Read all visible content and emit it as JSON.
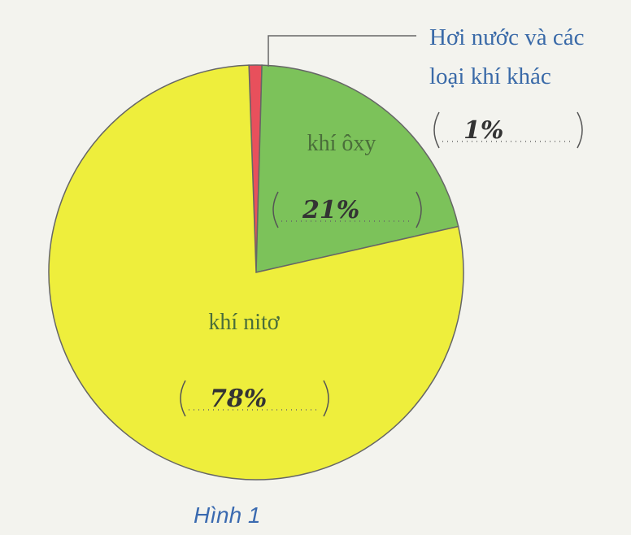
{
  "chart_data": {
    "type": "pie",
    "categories": [
      "Hơi nước và các loại khí khác",
      "khí ôxy",
      "khí nitơ"
    ],
    "values": [
      1,
      21,
      78
    ],
    "value_labels": [
      "1%",
      "21%",
      "78%"
    ],
    "colors": [
      "#e8505c",
      "#7cc25a",
      "#eeee3c"
    ],
    "caption": "Hình 1"
  }
}
